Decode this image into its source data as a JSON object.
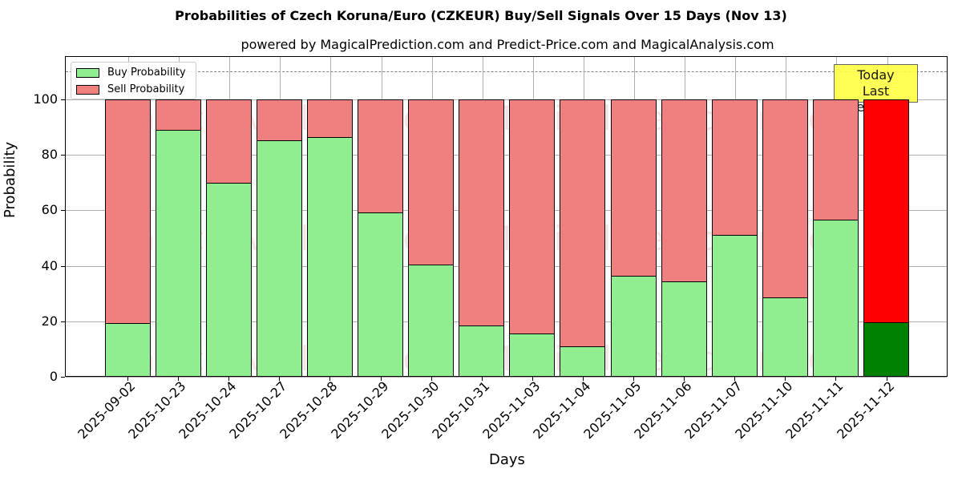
{
  "chart": {
    "title": "Probabilities of Czech Koruna/Euro (CZKEUR) Buy/Sell Signals Over 15 Days (Nov 13)",
    "subtitle": "powered by MagicalPrediction.com and Predict-Price.com and MagicalAnalysis.com",
    "xlabel": "Days",
    "ylabel": "Probability",
    "legend": {
      "buy": "Buy Probability",
      "sell": "Sell Probability"
    },
    "annotation": {
      "line1": "Today",
      "line2": "Last Prediction"
    },
    "watermarks": [
      "MagicalAnalysis.com",
      "MagicalPrediction.com"
    ],
    "yticks": [
      "0",
      "20",
      "40",
      "60",
      "80",
      "100"
    ]
  },
  "chart_data": {
    "type": "bar",
    "stacked": true,
    "title": "Probabilities of Czech Koruna/Euro (CZKEUR) Buy/Sell Signals Over 15 Days (Nov 13)",
    "subtitle": "powered by MagicalPrediction.com and Predict-Price.com and MagicalAnalysis.com",
    "xlabel": "Days",
    "ylabel": "Probability",
    "ylim": [
      0,
      115
    ],
    "yticks": [
      0,
      20,
      40,
      60,
      80,
      100
    ],
    "grid": true,
    "legend_position": "upper left",
    "reference_line": {
      "y": 110,
      "style": "dashed",
      "color": "#808080"
    },
    "categories": [
      "2025-09-02",
      "2025-10-23",
      "2025-10-24",
      "2025-10-27",
      "2025-10-28",
      "2025-10-29",
      "2025-10-30",
      "2025-10-31",
      "2025-11-03",
      "2025-11-04",
      "2025-11-05",
      "2025-11-06",
      "2025-11-07",
      "2025-11-10",
      "2025-11-11",
      "2025-11-12"
    ],
    "series": [
      {
        "name": "Buy Probability",
        "color": "#90ee90",
        "values": [
          19.5,
          89.0,
          70.0,
          85.3,
          86.4,
          59.3,
          40.5,
          18.4,
          15.6,
          11.1,
          36.5,
          34.4,
          51.3,
          28.5,
          56.7,
          19.7
        ]
      },
      {
        "name": "Sell Probability",
        "color": "#f08080",
        "values": [
          80.5,
          11.0,
          30.0,
          14.7,
          13.6,
          40.7,
          59.5,
          81.6,
          84.4,
          88.9,
          63.5,
          65.6,
          48.7,
          71.5,
          43.3,
          80.3
        ]
      }
    ],
    "highlight": {
      "category": "2025-11-12",
      "buy_color": "#008000",
      "sell_color": "#ff0000",
      "label": "Today\nLast Prediction"
    }
  }
}
